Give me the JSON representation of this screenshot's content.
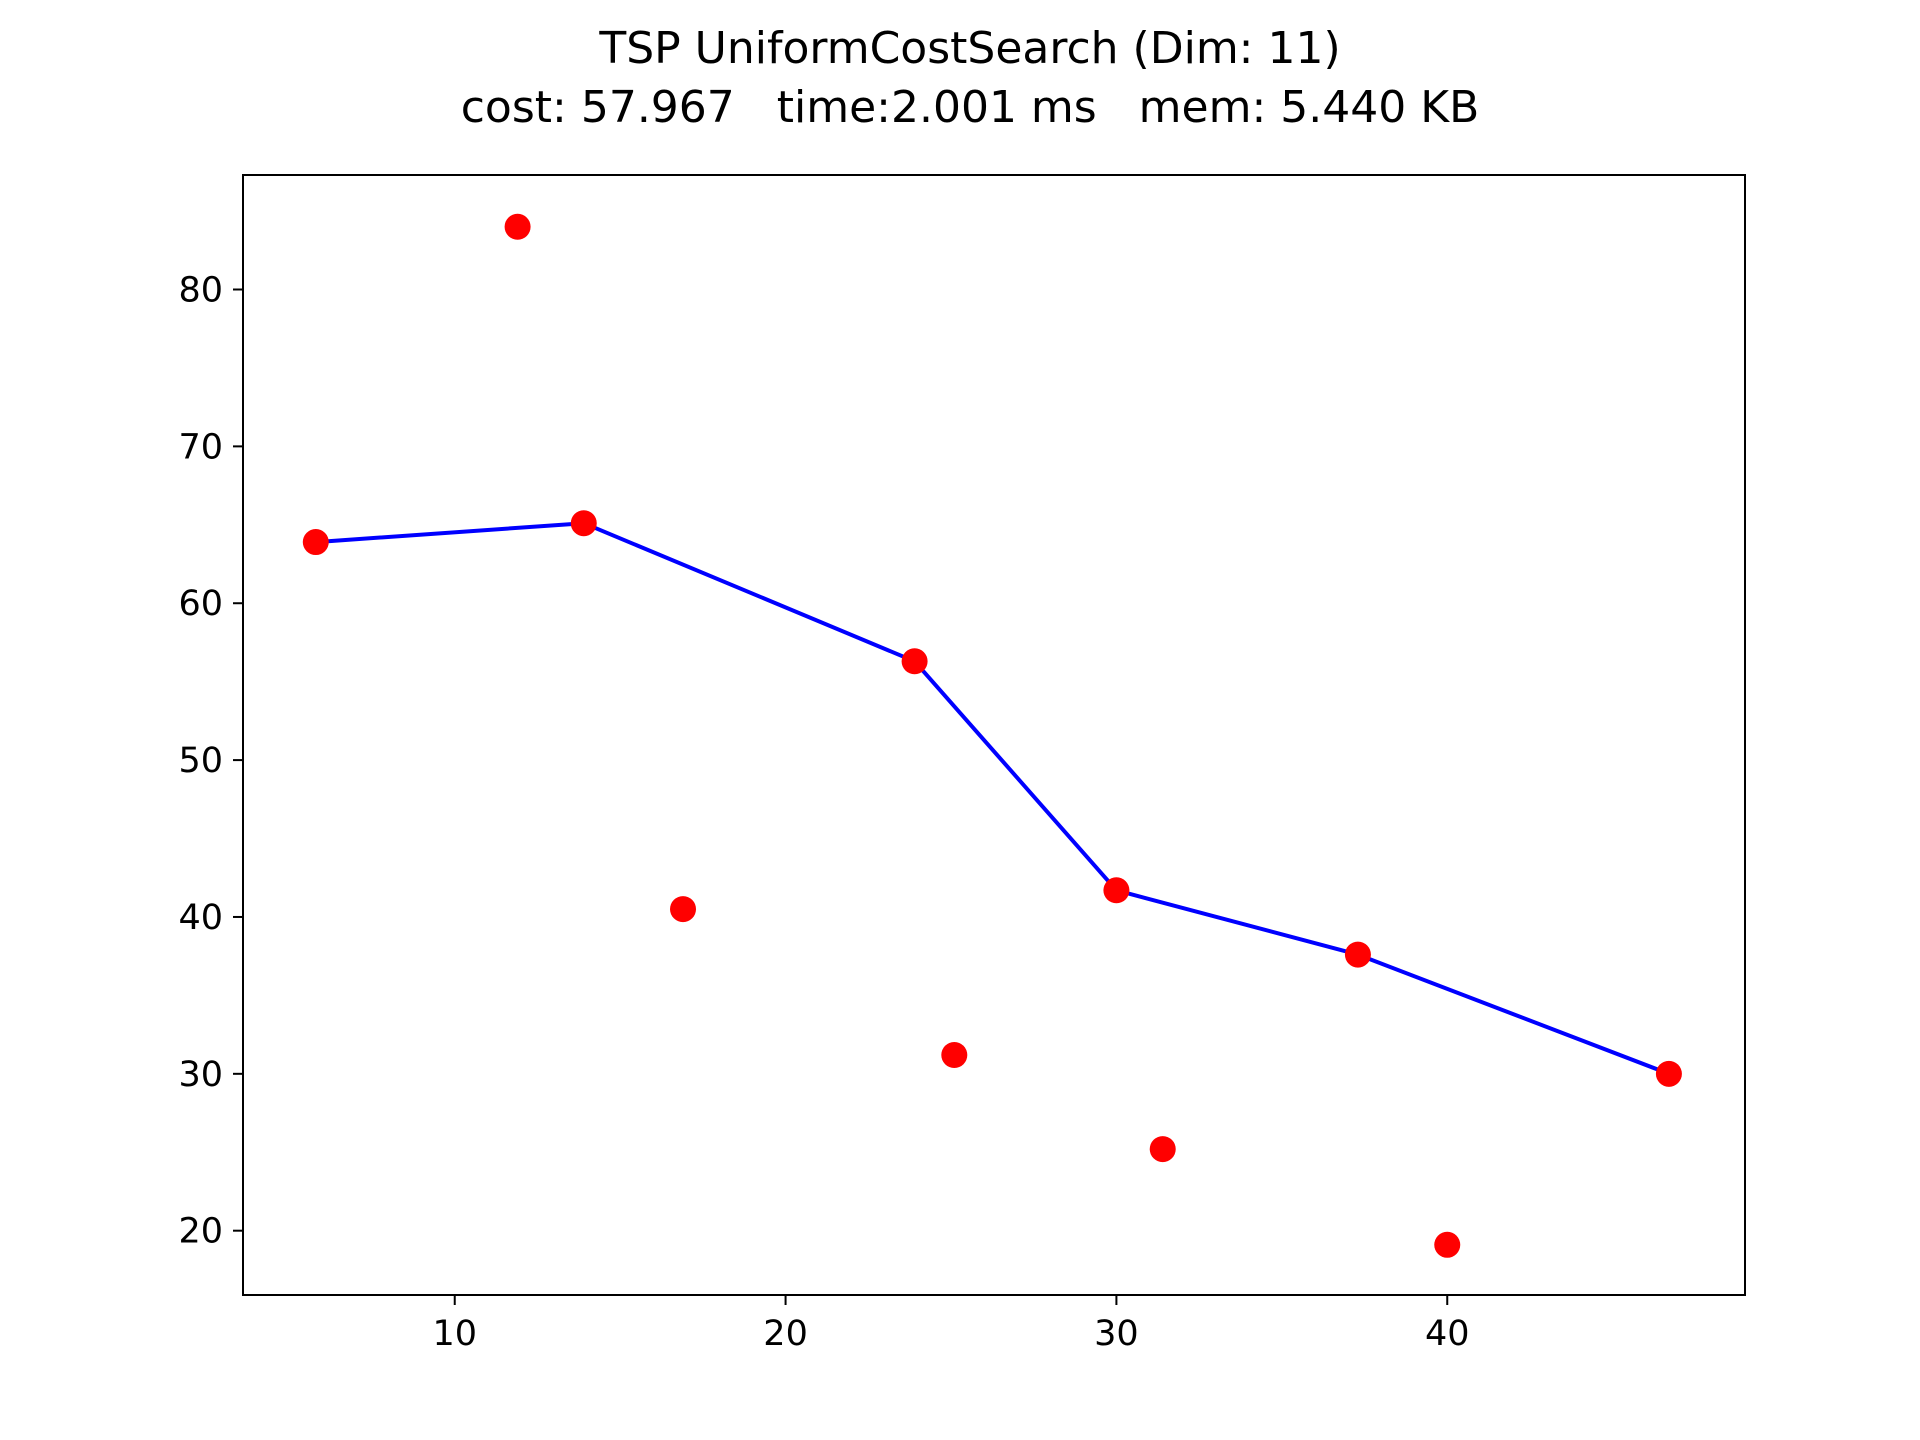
{
  "chart_data": {
    "type": "scatter",
    "title": "TSP UniformCostSearch (Dim: 11)",
    "subtitle": "cost: 57.967   time:2.001 ms   mem: 5.440 KB",
    "xlabel": "",
    "ylabel": "",
    "xlim": [
      3.6,
      49.0
    ],
    "ylim": [
      15.9,
      87.3
    ],
    "xticks": [
      10,
      20,
      30,
      40
    ],
    "yticks": [
      20,
      30,
      40,
      50,
      60,
      70,
      80
    ],
    "grid": false,
    "colors": {
      "points": "#ff0000",
      "path": "#0000ff",
      "axes": "#000000"
    },
    "points": [
      {
        "x": 5.8,
        "y": 63.9
      },
      {
        "x": 11.9,
        "y": 84.0
      },
      {
        "x": 13.9,
        "y": 65.1
      },
      {
        "x": 16.9,
        "y": 40.5
      },
      {
        "x": 23.9,
        "y": 56.3
      },
      {
        "x": 25.1,
        "y": 31.2
      },
      {
        "x": 30.0,
        "y": 41.7
      },
      {
        "x": 31.4,
        "y": 25.2
      },
      {
        "x": 37.3,
        "y": 37.6
      },
      {
        "x": 40.0,
        "y": 19.1
      },
      {
        "x": 46.7,
        "y": 30.0
      }
    ],
    "path": [
      {
        "x": 5.8,
        "y": 63.9
      },
      {
        "x": 13.9,
        "y": 65.1
      },
      {
        "x": 23.9,
        "y": 56.3
      },
      {
        "x": 30.0,
        "y": 41.7
      },
      {
        "x": 37.3,
        "y": 37.6
      },
      {
        "x": 46.7,
        "y": 30.0
      }
    ]
  }
}
